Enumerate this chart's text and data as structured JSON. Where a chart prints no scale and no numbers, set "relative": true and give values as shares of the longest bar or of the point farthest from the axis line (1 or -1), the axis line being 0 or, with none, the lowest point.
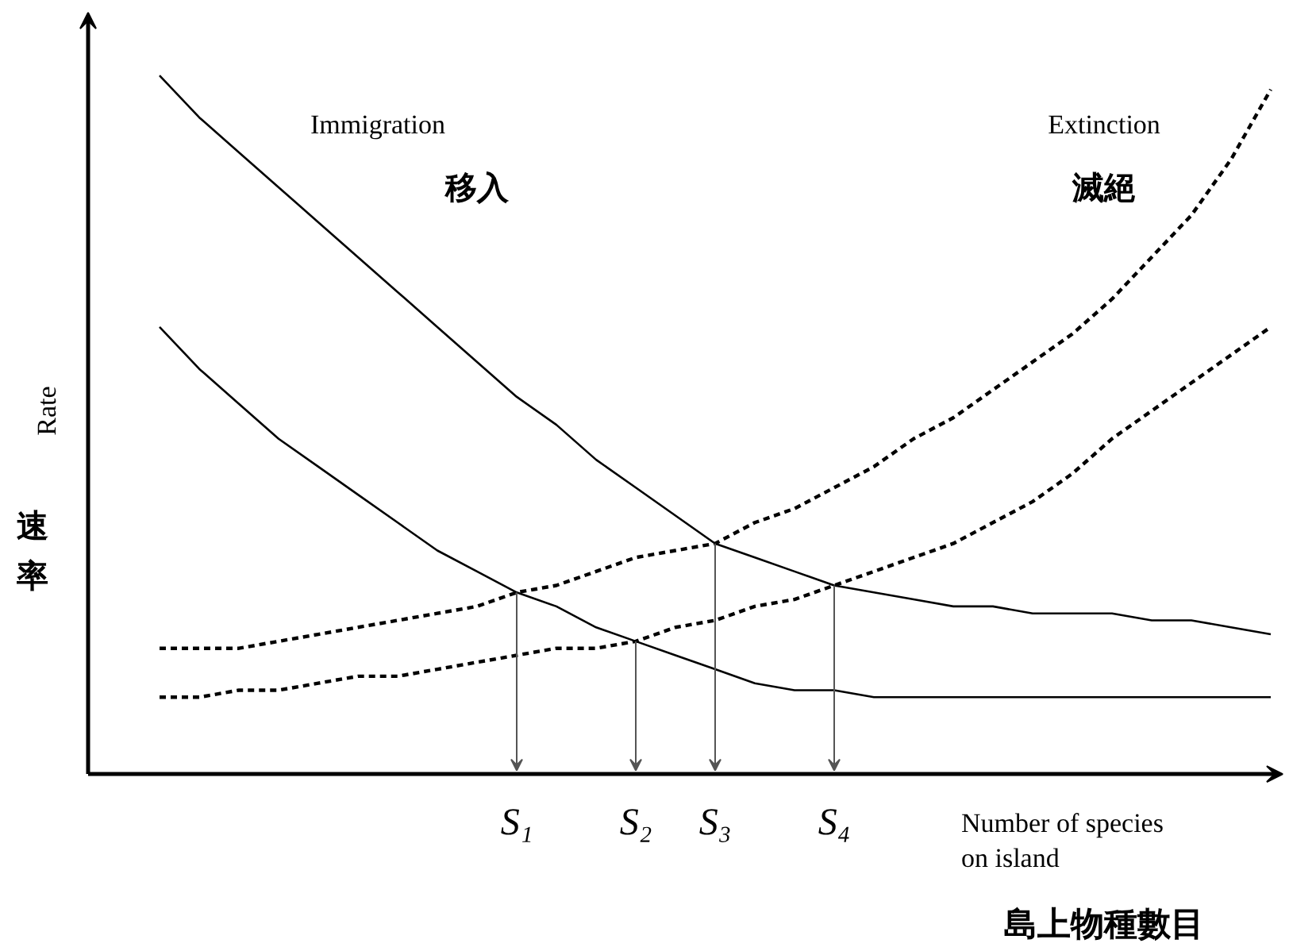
{
  "chart_data": {
    "type": "line",
    "relative": true,
    "xlabel": "Number of species\non island",
    "ylabel": "Rate",
    "annotations": [
      "速率",
      "島上物種數目"
    ],
    "grid": false,
    "marker": "none",
    "categories": [
      null,
      null,
      null,
      null,
      null,
      null,
      null,
      null,
      null,
      "S₁",
      null,
      null,
      "S₂",
      null,
      "S₃",
      null,
      null,
      "S₄",
      null,
      null,
      null,
      null,
      null,
      null,
      null,
      null,
      null,
      null,
      null
    ],
    "series": [
      {
        "name": "Immigration\n移入",
        "color": "#000000",
        "line_style": "solid",
        "values": [
          1.0,
          0.94,
          0.89,
          0.84,
          0.79,
          0.74,
          0.69,
          0.64,
          0.59,
          0.54,
          0.5,
          0.45,
          0.41,
          0.37,
          0.33,
          0.31,
          0.29,
          0.27,
          0.26,
          0.25,
          0.24,
          0.24,
          0.23,
          0.23,
          0.23,
          0.22,
          0.22,
          0.21,
          0.2
        ]
      },
      {
        "color": "#000000",
        "line_style": "solid",
        "values": [
          0.64,
          0.58,
          0.53,
          0.48,
          0.44,
          0.4,
          0.36,
          0.32,
          0.29,
          0.26,
          0.24,
          0.21,
          0.19,
          0.17,
          0.15,
          0.13,
          0.12,
          0.12,
          0.11,
          0.11,
          0.11,
          0.11,
          0.11,
          0.11,
          0.11,
          0.11,
          0.11,
          0.11,
          0.11
        ]
      },
      {
        "name": "Extinction\n滅絕",
        "color": "#000000",
        "line_style": "dashed",
        "values": [
          0.18,
          0.18,
          0.18,
          0.19,
          0.2,
          0.21,
          0.22,
          0.23,
          0.24,
          0.26,
          0.27,
          0.29,
          0.31,
          0.32,
          0.33,
          0.36,
          0.38,
          0.41,
          0.44,
          0.48,
          0.51,
          0.55,
          0.59,
          0.63,
          0.68,
          0.74,
          0.8,
          0.88,
          0.98
        ]
      },
      {
        "color": "#000000",
        "line_style": "dashed",
        "values": [
          0.11,
          0.11,
          0.12,
          0.12,
          0.13,
          0.14,
          0.14,
          0.15,
          0.16,
          0.17,
          0.18,
          0.18,
          0.19,
          0.21,
          0.22,
          0.24,
          0.25,
          0.27,
          0.29,
          0.31,
          0.33,
          0.36,
          0.39,
          0.43,
          0.48,
          0.52,
          0.56,
          0.6,
          0.64
        ]
      }
    ]
  }
}
